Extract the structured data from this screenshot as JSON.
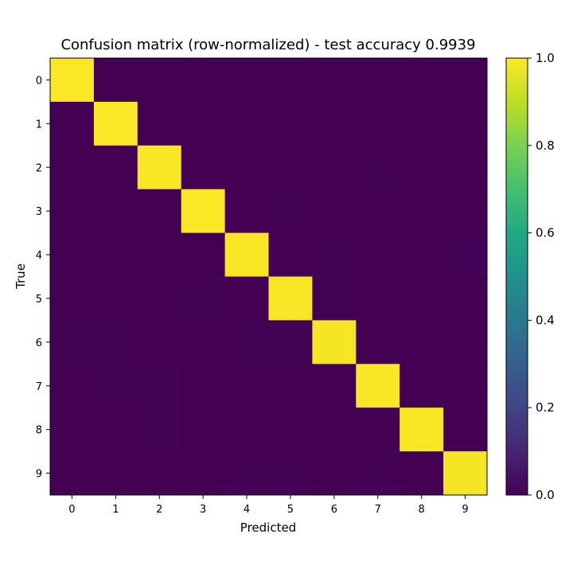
{
  "chart_data": {
    "type": "heatmap",
    "title": "Confusion matrix (row-normalized) - test accuracy 0.9939",
    "xlabel": "Predicted",
    "ylabel": "True",
    "x_categories": [
      "0",
      "1",
      "2",
      "3",
      "4",
      "5",
      "6",
      "7",
      "8",
      "9"
    ],
    "y_categories": [
      "0",
      "1",
      "2",
      "3",
      "4",
      "5",
      "6",
      "7",
      "8",
      "9"
    ],
    "values": [
      [
        0.997,
        0.0,
        0.001,
        0.0,
        0.0,
        0.0,
        0.001,
        0.001,
        0.0,
        0.0
      ],
      [
        0.0,
        0.996,
        0.001,
        0.001,
        0.0,
        0.0,
        0.001,
        0.001,
        0.0,
        0.0
      ],
      [
        0.001,
        0.001,
        0.994,
        0.001,
        0.0,
        0.0,
        0.0,
        0.003,
        0.0,
        0.0
      ],
      [
        0.0,
        0.0,
        0.001,
        0.995,
        0.0,
        0.002,
        0.0,
        0.001,
        0.001,
        0.0
      ],
      [
        0.0,
        0.0,
        0.0,
        0.0,
        0.992,
        0.0,
        0.002,
        0.0,
        0.001,
        0.005
      ],
      [
        0.001,
        0.0,
        0.0,
        0.004,
        0.0,
        0.991,
        0.002,
        0.0,
        0.001,
        0.001
      ],
      [
        0.003,
        0.002,
        0.001,
        0.0,
        0.002,
        0.003,
        0.988,
        0.0,
        0.001,
        0.0
      ],
      [
        0.0,
        0.002,
        0.003,
        0.0,
        0.0,
        0.0,
        0.0,
        0.993,
        0.001,
        0.001
      ],
      [
        0.001,
        0.0,
        0.002,
        0.001,
        0.0,
        0.001,
        0.0,
        0.001,
        0.993,
        0.001
      ],
      [
        0.001,
        0.001,
        0.0,
        0.0,
        0.004,
        0.002,
        0.0,
        0.003,
        0.001,
        0.988
      ]
    ],
    "colorbar": {
      "colormap": "viridis",
      "range": [
        0.0,
        1.0
      ],
      "ticks": [
        "0.0",
        "0.2",
        "0.4",
        "0.6",
        "0.8",
        "1.0"
      ]
    },
    "grid": false
  }
}
